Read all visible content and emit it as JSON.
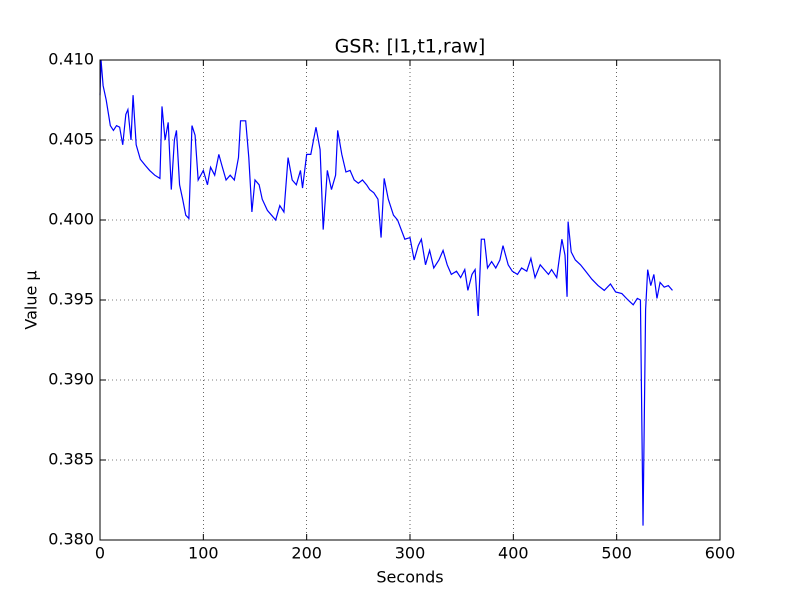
{
  "chart_data": {
    "type": "line",
    "title": "GSR: [l1,t1,raw]",
    "x_label": "Seconds",
    "y_label": "Value μ",
    "xlim": [
      0,
      600
    ],
    "xticks": [
      0,
      100,
      200,
      300,
      400,
      500,
      600
    ],
    "ylim": [
      0.38,
      0.41
    ],
    "yticks": [
      {
        "value": 0.38,
        "label": "0.380"
      },
      0.385,
      {
        "value": 0.39,
        "label": "0.390"
      },
      0.395,
      {
        "value": 0.4,
        "label": "0.400"
      },
      0.405,
      {
        "value": 0.41,
        "label": "0.410"
      }
    ],
    "grid": true,
    "series": [
      {
        "color": "#0000ff",
        "x": [
          0,
          1,
          3,
          6,
          10,
          13,
          16,
          19,
          22,
          25,
          27,
          30,
          32,
          35,
          39,
          44,
          48,
          53,
          58,
          60,
          63,
          66,
          69,
          72,
          74,
          77,
          80,
          83,
          86,
          89,
          92,
          95,
          100,
          104,
          107,
          111,
          115,
          118,
          122,
          126,
          130,
          134,
          136,
          141,
          144,
          147,
          150,
          154,
          157,
          162,
          166,
          170,
          174,
          178,
          182,
          186,
          190,
          194,
          196,
          200,
          204,
          209,
          213,
          216,
          220,
          224,
          228,
          230,
          234,
          238,
          242,
          246,
          250,
          254,
          258,
          261,
          265,
          269,
          272,
          275,
          279,
          284,
          288,
          295,
          300,
          304,
          308,
          311,
          315,
          319,
          323,
          328,
          332,
          336,
          340,
          345,
          349,
          353,
          356,
          360,
          363,
          366,
          369,
          372,
          375,
          379,
          383,
          387,
          390,
          395,
          399,
          404,
          408,
          413,
          417,
          421,
          426,
          430,
          434,
          437,
          442,
          447,
          450,
          452,
          453,
          456,
          460,
          465,
          470,
          476,
          482,
          488,
          494,
          499,
          505,
          511,
          516,
          520,
          523,
          525.5,
          528,
          530,
          533,
          536,
          539,
          542,
          546,
          550,
          554
        ],
        "values": [
          0.4078,
          0.41,
          0.4084,
          0.4075,
          0.4059,
          0.4056,
          0.4059,
          0.4058,
          0.4047,
          0.4066,
          0.4069,
          0.405,
          0.4078,
          0.4047,
          0.4038,
          0.4034,
          0.4031,
          0.4028,
          0.4026,
          0.4071,
          0.405,
          0.4061,
          0.4019,
          0.405,
          0.4056,
          0.4022,
          0.4013,
          0.4003,
          0.4001,
          0.4059,
          0.4053,
          0.4025,
          0.4031,
          0.4022,
          0.4033,
          0.4028,
          0.4041,
          0.4034,
          0.4025,
          0.4028,
          0.4025,
          0.4039,
          0.4062,
          0.4062,
          0.4039,
          0.4005,
          0.4025,
          0.4022,
          0.4013,
          0.4006,
          0.4003,
          0.4,
          0.4009,
          0.4005,
          0.4039,
          0.4025,
          0.4022,
          0.4031,
          0.402,
          0.4041,
          0.4041,
          0.4058,
          0.4044,
          0.3994,
          0.4031,
          0.4019,
          0.4028,
          0.4056,
          0.4041,
          0.403,
          0.4031,
          0.4025,
          0.4023,
          0.4025,
          0.4022,
          0.4019,
          0.4017,
          0.4013,
          0.3989,
          0.4026,
          0.4013,
          0.4003,
          0.4,
          0.3988,
          0.3989,
          0.3975,
          0.3984,
          0.3988,
          0.3972,
          0.3981,
          0.397,
          0.3975,
          0.3981,
          0.3972,
          0.3966,
          0.3968,
          0.3964,
          0.3969,
          0.3956,
          0.3966,
          0.3969,
          0.394,
          0.3988,
          0.3988,
          0.397,
          0.3974,
          0.397,
          0.3975,
          0.3984,
          0.3972,
          0.3968,
          0.3966,
          0.397,
          0.3968,
          0.3976,
          0.3964,
          0.3972,
          0.3969,
          0.3966,
          0.3969,
          0.3964,
          0.3988,
          0.3978,
          0.3952,
          0.3999,
          0.398,
          0.3975,
          0.3972,
          0.3968,
          0.3963,
          0.3959,
          0.3956,
          0.396,
          0.3955,
          0.3954,
          0.395,
          0.3947,
          0.3951,
          0.395,
          0.3809,
          0.3944,
          0.3969,
          0.3959,
          0.3966,
          0.3951,
          0.3961,
          0.3958,
          0.3959,
          0.3956
        ]
      }
    ]
  }
}
